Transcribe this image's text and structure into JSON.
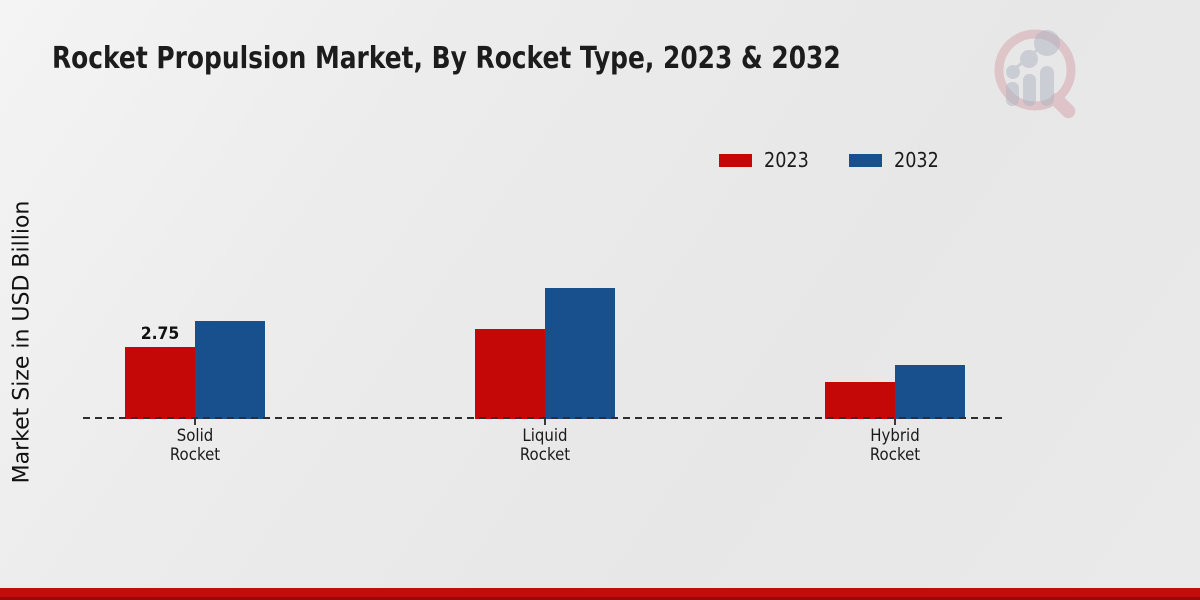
{
  "chart_data": {
    "type": "bar",
    "title": "Rocket Propulsion Market, By Rocket Type, 2023 & 2032",
    "ylabel": "Market Size in USD Billion",
    "xlabel": "",
    "categories": [
      {
        "name": "Solid Rocket",
        "line1": "Solid",
        "line2": "Rocket"
      },
      {
        "name": "Liquid Rocket",
        "line1": "Liquid",
        "line2": "Rocket"
      },
      {
        "name": "Hybrid Rocket",
        "line1": "Hybrid",
        "line2": "Rocket"
      }
    ],
    "series": [
      {
        "name": "2023",
        "color": "#c40808",
        "values": [
          2.75,
          3.45,
          1.4
        ]
      },
      {
        "name": "2032",
        "color": "#17508c",
        "values": [
          3.75,
          5.0,
          2.05
        ]
      }
    ],
    "bar_label": {
      "series": "2023",
      "category": "Solid Rocket",
      "text": "2.75"
    },
    "ylim": [
      0,
      5.5
    ],
    "grid": false,
    "axis_style": "dashed-baseline-only",
    "legend_position": "top-right"
  },
  "legend": {
    "items": [
      {
        "label": "2023",
        "color": "#c40808"
      },
      {
        "label": "2032",
        "color": "#17508c"
      }
    ]
  },
  "footer": {
    "bar_color": "#c30c0c"
  },
  "logo": {
    "name": "magnifier-bar-chart-watermark"
  }
}
